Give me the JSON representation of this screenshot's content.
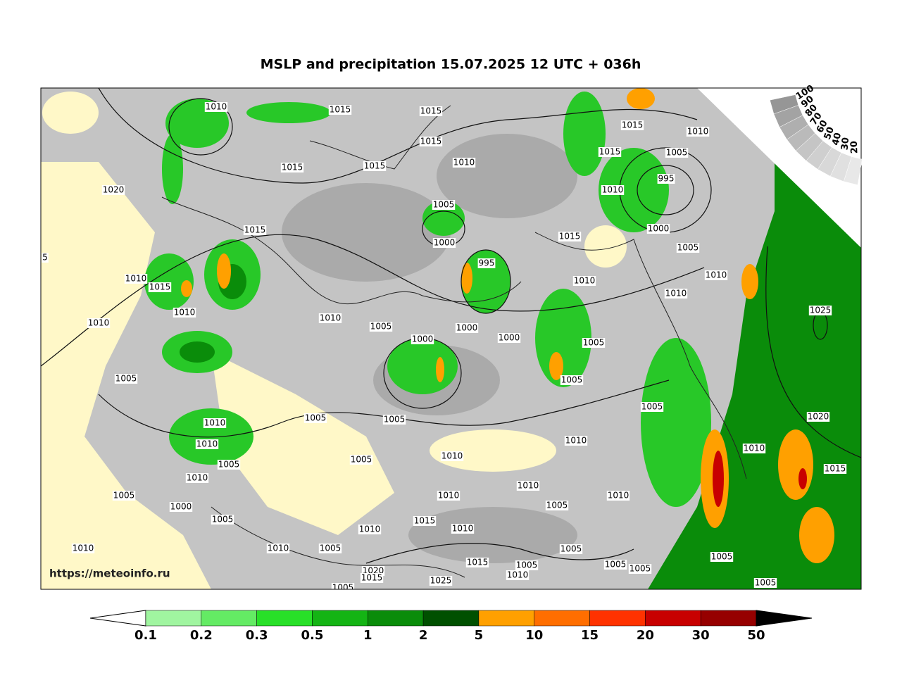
{
  "header": {
    "title": "MSLP and precipitation 15.07.2025 12 UTC + 036h"
  },
  "map": {
    "watermark": "https://meteoinfo.ru",
    "isobar_labels": [
      "1010",
      "1015",
      "1015",
      "1015",
      "1015",
      "1015",
      "1010",
      "1020",
      "1005",
      "1015",
      "1000",
      "5",
      "995",
      "1010",
      "1015",
      "1010",
      "1010",
      "1010",
      "1005",
      "1000",
      "1000",
      "1000",
      "1005",
      "1005",
      "1005",
      "1010",
      "1010",
      "1005",
      "1005",
      "1010",
      "1010",
      "1005",
      "1000",
      "1005",
      "1010",
      "1010",
      "1005",
      "1015",
      "1010",
      "1010",
      "1010",
      "1010",
      "1005",
      "1020",
      "1015",
      "1005",
      "1015",
      "1005",
      "1010",
      "1025",
      "1005",
      "1005",
      "1005",
      "1010",
      "1010",
      "1005",
      "1005",
      "1005",
      "1010",
      "1015",
      "1010",
      "1010",
      "1005",
      "1000",
      "995",
      "1010",
      "1005",
      "1010",
      "1015",
      "1015",
      "1025",
      "1020",
      "1010",
      "1015",
      "1005",
      "1005"
    ]
  },
  "precip_legend": {
    "levels": [
      0.1,
      0.2,
      0.3,
      0.5,
      1,
      2,
      5,
      10,
      15,
      20,
      30,
      50
    ],
    "colors": [
      "#ffffff",
      "#a0f5a0",
      "#64eb64",
      "#28e028",
      "#14b414",
      "#0a8c0a",
      "#005000",
      "#ffa000",
      "#ff6e00",
      "#ff3200",
      "#c80000",
      "#960000",
      "#000000"
    ]
  },
  "cloud_scale": {
    "levels": [
      100,
      90,
      80,
      70,
      60,
      50,
      40,
      30,
      20
    ],
    "colors": [
      "#969696",
      "#a3a3a3",
      "#afafaf",
      "#bababa",
      "#c5c5c5",
      "#cfcfcf",
      "#d8d8d8",
      "#e0e0e0",
      "#e8e8e8"
    ]
  }
}
